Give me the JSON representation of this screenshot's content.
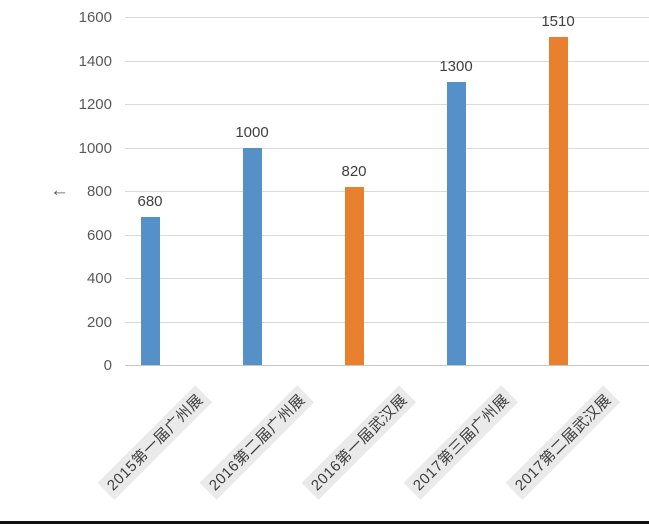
{
  "chart_data": {
    "type": "bar",
    "title": "",
    "xlabel": "",
    "ylabel": "",
    "categories": [
      "2015第一届广州展",
      "2016第二届广州展",
      "2016第一届武汉展",
      "2017第三届广州展",
      "2017第二届武汉展"
    ],
    "values": [
      680,
      1000,
      820,
      1300,
      1510
    ],
    "data_labels": [
      "680",
      "1000",
      "820",
      "1300",
      "1510"
    ],
    "bar_colors": [
      "#5590c8",
      "#5590c8",
      "#e8802f",
      "#5590c8",
      "#e8802f"
    ],
    "ylim": [
      0,
      1600
    ],
    "yticks": [
      0,
      200,
      400,
      600,
      800,
      1000,
      1200,
      1400,
      1600
    ],
    "grid": true,
    "legend": "none"
  },
  "ui": {
    "y_axis_arrow": "←"
  },
  "colors": {
    "series_blue": "#5590c8",
    "series_orange": "#e8802f",
    "gridline": "#d9d9d9",
    "axis_line": "#c6c6c6",
    "tick_text": "#595959",
    "value_text": "#3f3f3f",
    "category_text": "#3d3d3d",
    "category_label_bg": "#eaeaea",
    "bottom_rule": "#111111",
    "background": "#ffffff"
  }
}
